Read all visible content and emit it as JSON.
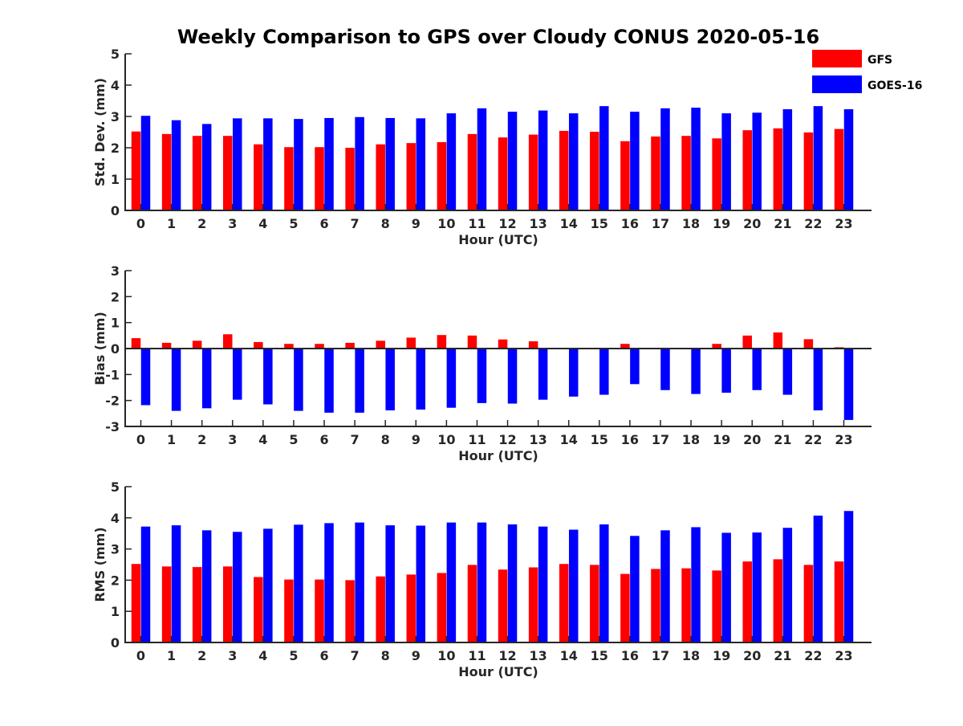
{
  "title": "Weekly Comparison to GPS over Cloudy CONUS 2020-05-16",
  "colors": {
    "GFS": "#ff0000",
    "GOES-16": "#0000ff",
    "axis": "#262626"
  },
  "legend": {
    "placement": "top-right",
    "entries": [
      "GFS",
      "GOES-16"
    ]
  },
  "chart_data": [
    {
      "type": "bar",
      "xlabel": "Hour (UTC)",
      "ylabel": "Std. Dev. (mm)",
      "ylim": [
        0,
        5
      ],
      "yticks": [
        0,
        1,
        2,
        3,
        4,
        5
      ],
      "categories": [
        "0",
        "1",
        "2",
        "3",
        "4",
        "5",
        "6",
        "7",
        "8",
        "9",
        "10",
        "11",
        "12",
        "13",
        "14",
        "15",
        "16",
        "17",
        "18",
        "19",
        "20",
        "21",
        "22",
        "23"
      ],
      "series": [
        {
          "name": "GFS",
          "values": [
            2.52,
            2.44,
            2.38,
            2.38,
            2.11,
            2.02,
            2.02,
            2.0,
            2.11,
            2.15,
            2.18,
            2.44,
            2.33,
            2.42,
            2.54,
            2.51,
            2.21,
            2.36,
            2.38,
            2.3,
            2.56,
            2.62,
            2.49,
            2.6
          ]
        },
        {
          "name": "GOES-16",
          "values": [
            3.02,
            2.88,
            2.76,
            2.94,
            2.94,
            2.92,
            2.95,
            2.98,
            2.95,
            2.94,
            3.1,
            3.26,
            3.15,
            3.19,
            3.1,
            3.33,
            3.15,
            3.26,
            3.28,
            3.1,
            3.12,
            3.23,
            3.33,
            3.23
          ]
        }
      ]
    },
    {
      "type": "bar",
      "xlabel": "Hour (UTC)",
      "ylabel": "Bias (mm)",
      "ylim": [
        -3,
        3
      ],
      "yticks": [
        -3,
        -2,
        -1,
        0,
        1,
        2,
        3
      ],
      "categories": [
        "0",
        "1",
        "2",
        "3",
        "4",
        "5",
        "6",
        "7",
        "8",
        "9",
        "10",
        "11",
        "12",
        "13",
        "14",
        "15",
        "16",
        "17",
        "18",
        "19",
        "20",
        "21",
        "22",
        "23"
      ],
      "series": [
        {
          "name": "GFS",
          "values": [
            0.4,
            0.22,
            0.3,
            0.55,
            0.25,
            0.18,
            0.18,
            0.22,
            0.3,
            0.42,
            0.52,
            0.5,
            0.35,
            0.28,
            0.02,
            -0.02,
            0.18,
            0.02,
            0.02,
            0.18,
            0.5,
            0.62,
            0.36,
            0.05
          ]
        },
        {
          "name": "GOES-16",
          "values": [
            -2.18,
            -2.4,
            -2.3,
            -1.97,
            -2.15,
            -2.4,
            -2.47,
            -2.47,
            -2.38,
            -2.35,
            -2.28,
            -2.1,
            -2.12,
            -1.97,
            -1.85,
            -1.78,
            -1.37,
            -1.6,
            -1.75,
            -1.7,
            -1.6,
            -1.78,
            -2.38,
            -2.75
          ]
        }
      ]
    },
    {
      "type": "bar",
      "xlabel": "Hour (UTC)",
      "ylabel": "RMS (mm)",
      "ylim": [
        0,
        5
      ],
      "yticks": [
        0,
        1,
        2,
        3,
        4,
        5
      ],
      "categories": [
        "0",
        "1",
        "2",
        "3",
        "4",
        "5",
        "6",
        "7",
        "8",
        "9",
        "10",
        "11",
        "12",
        "13",
        "14",
        "15",
        "16",
        "17",
        "18",
        "19",
        "20",
        "21",
        "22",
        "23"
      ],
      "series": [
        {
          "name": "GFS",
          "values": [
            2.52,
            2.44,
            2.42,
            2.44,
            2.1,
            2.02,
            2.02,
            2.0,
            2.12,
            2.18,
            2.23,
            2.49,
            2.34,
            2.41,
            2.52,
            2.49,
            2.2,
            2.36,
            2.38,
            2.31,
            2.6,
            2.67,
            2.49,
            2.6
          ]
        },
        {
          "name": "GOES-16",
          "values": [
            3.72,
            3.76,
            3.6,
            3.55,
            3.65,
            3.78,
            3.83,
            3.85,
            3.76,
            3.75,
            3.85,
            3.85,
            3.79,
            3.72,
            3.62,
            3.79,
            3.42,
            3.6,
            3.7,
            3.52,
            3.53,
            3.68,
            4.07,
            4.22
          ]
        }
      ]
    }
  ]
}
